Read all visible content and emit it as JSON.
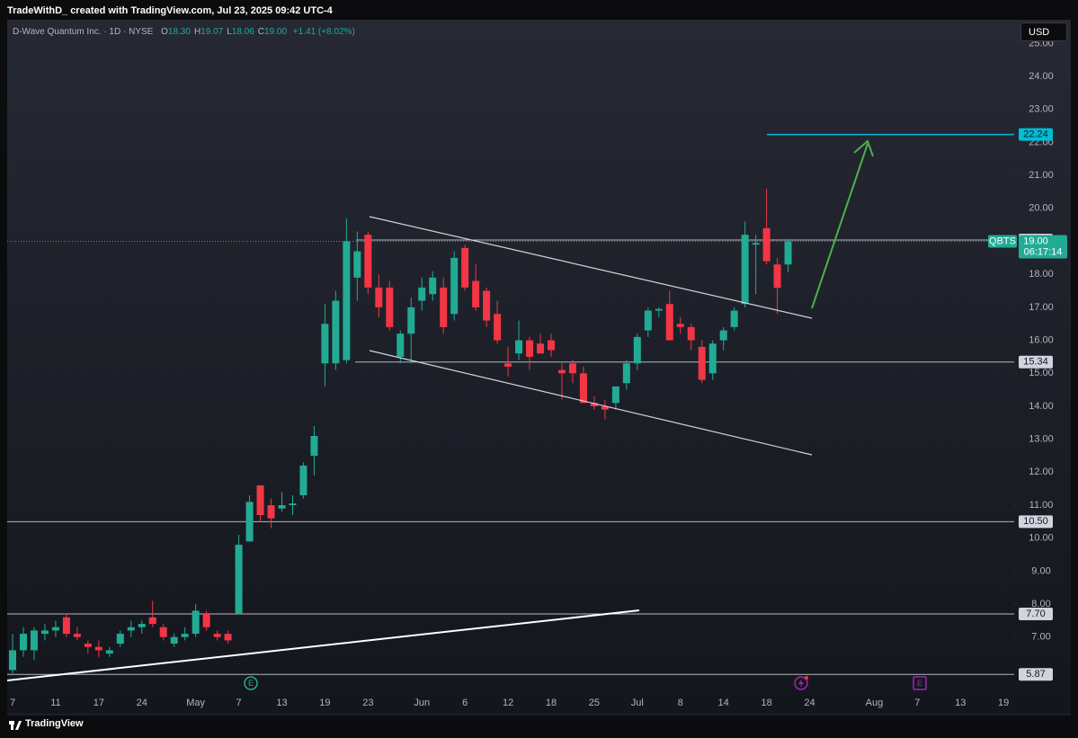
{
  "top_bar": {
    "text": "TradeWithD_ created with TradingView.com, Jul 23, 2025 09:42 UTC-4"
  },
  "chart_data": {
    "type": "candlestick",
    "title": "D-Wave Quantum Inc. · 1D · NYSE",
    "ohlc_legend": [
      {
        "label": "O",
        "value": "18.30"
      },
      {
        "label": "H",
        "value": "19.07"
      },
      {
        "label": "L",
        "value": "18.06"
      },
      {
        "label": "C",
        "value": "19.00"
      }
    ],
    "change": "+1.41 (+8.02%)",
    "currency": "USD",
    "categories": [
      "7",
      null,
      null,
      null,
      "11",
      null,
      null,
      null,
      "17",
      null,
      null,
      null,
      "24",
      null,
      null,
      null,
      null,
      "May",
      null,
      null,
      null,
      "7",
      null,
      null,
      null,
      "13",
      null,
      null,
      null,
      "19",
      null,
      null,
      null,
      "23",
      null,
      null,
      null,
      null,
      "Jun",
      null,
      null,
      null,
      "6",
      null,
      null,
      null,
      "12",
      null,
      null,
      null,
      "18",
      null,
      null,
      null,
      "25",
      null,
      null,
      null,
      "Jul",
      null,
      null,
      null,
      "8",
      null,
      null,
      null,
      "14",
      null,
      null,
      null,
      "18",
      null,
      null,
      null,
      "24",
      null,
      null,
      null,
      null,
      null,
      "Aug",
      null,
      null,
      null,
      "7",
      null,
      null,
      null,
      "13",
      null,
      null,
      null,
      "19"
    ],
    "open": [
      6.0,
      6.6,
      6.6,
      7.1,
      7.2,
      7.6,
      7.1,
      6.8,
      6.7,
      6.5,
      6.8,
      7.2,
      7.3,
      7.6,
      7.3,
      6.8,
      7.0,
      7.1,
      7.7,
      7.1,
      7.1,
      7.7,
      9.9,
      11.6,
      11.0,
      10.9,
      11.0,
      11.3,
      12.5,
      15.3,
      15.3,
      15.4,
      17.9,
      19.2,
      17.6,
      17.6,
      15.5,
      16.2,
      17.2,
      17.4,
      17.6,
      16.8,
      18.8,
      17.8,
      17.5,
      16.8,
      15.3,
      15.6,
      16.0,
      15.9,
      16.0,
      15.1,
      15.3,
      15.0,
      14.1,
      14.0,
      14.1,
      14.7,
      15.3,
      16.3,
      16.9,
      17.1,
      16.5,
      16.4,
      15.8,
      15.0,
      16.0,
      16.4,
      17.1,
      18.9,
      19.4,
      18.3,
      18.3,
      null,
      null,
      null,
      null,
      null,
      null,
      null,
      null,
      null,
      null,
      null,
      null,
      null,
      null,
      null,
      null,
      null,
      null,
      null,
      null
    ],
    "high": [
      7.1,
      7.3,
      7.3,
      7.4,
      7.5,
      7.7,
      7.3,
      6.9,
      6.9,
      6.7,
      7.2,
      7.5,
      7.5,
      8.1,
      7.4,
      7.1,
      7.3,
      8.0,
      7.8,
      7.2,
      7.2,
      10.1,
      11.3,
      11.6,
      11.2,
      11.4,
      11.3,
      12.3,
      13.4,
      17.1,
      17.5,
      19.7,
      19.3,
      19.3,
      18.0,
      17.8,
      16.3,
      17.3,
      17.9,
      18.1,
      17.9,
      18.7,
      18.9,
      18.3,
      17.6,
      17.2,
      15.8,
      16.6,
      16.1,
      16.2,
      16.2,
      15.3,
      15.4,
      15.2,
      14.3,
      14.2,
      14.6,
      15.4,
      16.2,
      17.0,
      17.0,
      17.5,
      16.7,
      16.5,
      16.0,
      16.0,
      16.4,
      17.0,
      19.6,
      19.2,
      20.6,
      18.5,
      19.07,
      null,
      null,
      null,
      null,
      null,
      null,
      null,
      null,
      null,
      null,
      null,
      null,
      null,
      null,
      null,
      null,
      null,
      null,
      null,
      null
    ],
    "low": [
      5.9,
      6.4,
      6.3,
      6.9,
      7.0,
      7.0,
      6.9,
      6.5,
      6.4,
      6.4,
      6.7,
      7.0,
      7.1,
      7.3,
      6.9,
      6.7,
      6.9,
      7.0,
      7.2,
      6.9,
      6.8,
      7.7,
      9.9,
      10.5,
      10.3,
      10.8,
      10.7,
      11.2,
      11.9,
      14.6,
      15.1,
      15.3,
      17.2,
      17.4,
      16.7,
      16.3,
      15.3,
      15.3,
      16.9,
      17.2,
      16.2,
      16.6,
      17.5,
      16.9,
      16.4,
      15.9,
      14.9,
      15.4,
      15.1,
      15.6,
      15.5,
      14.2,
      14.7,
      14.1,
      13.9,
      13.6,
      13.9,
      14.5,
      15.1,
      16.1,
      16.7,
      16.0,
      16.2,
      15.7,
      14.7,
      14.8,
      15.7,
      16.3,
      17.0,
      17.4,
      18.3,
      16.8,
      18.06,
      null,
      null,
      null,
      null,
      null,
      null,
      null,
      null,
      null,
      null,
      null,
      null,
      null,
      null,
      null,
      null,
      null,
      null,
      null,
      null
    ],
    "close": [
      6.6,
      7.1,
      7.2,
      7.2,
      7.3,
      7.1,
      7.0,
      6.7,
      6.6,
      6.6,
      7.1,
      7.3,
      7.4,
      7.4,
      7.0,
      7.0,
      7.1,
      7.8,
      7.3,
      7.0,
      6.9,
      9.8,
      11.1,
      10.7,
      10.6,
      11.0,
      11.05,
      12.2,
      13.1,
      16.5,
      17.2,
      19.0,
      18.7,
      17.6,
      17.0,
      16.4,
      16.2,
      17.0,
      17.6,
      17.9,
      16.4,
      18.5,
      17.6,
      17.0,
      16.6,
      16.0,
      15.2,
      16.0,
      15.5,
      15.6,
      15.7,
      15.0,
      15.0,
      14.1,
      14.0,
      13.9,
      14.6,
      15.3,
      16.1,
      16.9,
      16.95,
      16.0,
      16.4,
      16.0,
      14.8,
      15.9,
      16.3,
      16.9,
      19.2,
      18.95,
      18.4,
      17.59,
      19.0,
      null,
      null,
      null,
      null,
      null,
      null,
      null,
      null,
      null,
      null,
      null,
      null,
      null,
      null,
      null,
      null,
      null,
      null,
      null,
      null
    ],
    "up_color": "#22ab94",
    "down_color": "#f23645",
    "ylim": [
      5.33,
      25.72
    ],
    "yticks": [
      {
        "value": 7,
        "label": "7.00"
      },
      {
        "value": 8,
        "label": "8.00"
      },
      {
        "value": 9,
        "label": "9.00"
      },
      {
        "value": 10,
        "label": "10.00"
      },
      {
        "value": 11,
        "label": "11.00"
      },
      {
        "value": 12,
        "label": "12.00"
      },
      {
        "value": 13,
        "label": "13.00"
      },
      {
        "value": 14,
        "label": "14.00"
      },
      {
        "value": 15,
        "label": "15.00"
      },
      {
        "value": 16,
        "label": "16.00"
      },
      {
        "value": 17,
        "label": "17.00"
      },
      {
        "value": 18,
        "label": "18.00"
      },
      {
        "value": 19,
        "label": "19.00"
      },
      {
        "value": 20,
        "label": "20.00"
      },
      {
        "value": 21,
        "label": "21.00"
      },
      {
        "value": 22,
        "label": "22.00"
      },
      {
        "value": 23,
        "label": "23.00"
      },
      {
        "value": 24,
        "label": "24.00"
      },
      {
        "value": 25,
        "label": "25.00"
      }
    ],
    "grid": false,
    "levels": [
      {
        "value": 22.24,
        "label": "22.24",
        "color": "#00bcd4"
      },
      {
        "value": 19.04,
        "label": "19.04",
        "color": "#d1d4dc"
      },
      {
        "value": 15.34,
        "label": "15.34",
        "color": "#d1d4dc"
      },
      {
        "value": 10.5,
        "label": "10.50",
        "color": "#d1d4dc"
      },
      {
        "value": 7.7,
        "label": "7.70",
        "color": "#d1d4dc"
      },
      {
        "value": 5.87,
        "label": "5.87",
        "color": "#d1d4dc"
      }
    ],
    "last_price": {
      "symbol": "QBTS",
      "value": 19.0,
      "label": "19.00",
      "countdown": "06:17:14"
    },
    "events": [
      "E",
      "E"
    ]
  },
  "footer": {
    "brand": "TradingView"
  }
}
